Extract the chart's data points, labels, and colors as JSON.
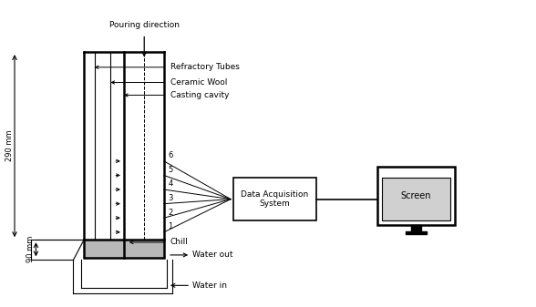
{
  "bg_color": "#ffffff",
  "line_color": "#000000",
  "fig_width": 5.88,
  "fig_height": 3.37,
  "dpi": 100,
  "labels": {
    "pouring_direction": "Pouring direction",
    "refractory_tubes": "Refractory Tubes",
    "ceramic_wool": "Ceramic Wool",
    "casting_cavity": "Casting cavity",
    "data_acquisition": "Data Acquisition\nSystem",
    "screen": "Screen",
    "chill": "Chill",
    "water_out": "Water out",
    "water_in": "Water in",
    "dim_290": "290 mm",
    "dim_90": "90 mm",
    "tc_labels": [
      "6",
      "5",
      "4",
      "3",
      "2",
      "1"
    ]
  }
}
